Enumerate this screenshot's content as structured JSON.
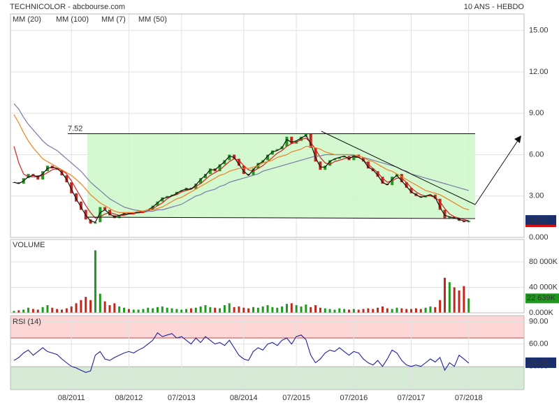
{
  "chart_data": [
    {
      "type": "stock",
      "title": "TECHNICOLOR - abcbourse.com",
      "subtitle": "10 ANS - HEBDO",
      "categories": [
        null,
        null,
        null,
        null,
        null,
        null,
        null,
        null,
        null,
        null,
        null,
        null,
        "08/2011",
        null,
        null,
        null,
        null,
        null,
        null,
        null,
        null,
        null,
        null,
        null,
        "08/2012",
        null,
        null,
        null,
        null,
        null,
        null,
        null,
        null,
        null,
        null,
        "07/2013",
        null,
        null,
        null,
        null,
        null,
        null,
        null,
        null,
        null,
        null,
        null,
        null,
        "08/2014",
        null,
        null,
        null,
        null,
        null,
        null,
        null,
        null,
        null,
        null,
        "07/2015",
        null,
        null,
        null,
        null,
        null,
        null,
        null,
        null,
        null,
        null,
        null,
        "07/2016",
        null,
        null,
        null,
        null,
        null,
        null,
        null,
        null,
        null,
        null,
        null,
        "07/2017",
        null,
        null,
        null,
        null,
        null,
        null,
        null,
        null,
        null,
        null,
        null,
        "07/2018"
      ],
      "values": [
        4.0,
        3.9,
        4.3,
        4.6,
        4.5,
        4.2,
        4.8,
        5.2,
        5.0,
        4.9,
        4.5,
        4.0,
        3.2,
        2.6,
        2.0,
        1.3,
        1.0,
        1.1,
        2.2,
        2.0,
        1.6,
        1.4,
        1.6,
        1.8,
        1.7,
        1.8,
        1.8,
        1.9,
        2.0,
        2.3,
        2.6,
        2.9,
        3.0,
        3.1,
        3.3,
        3.4,
        3.6,
        3.5,
        3.9,
        4.3,
        4.6,
        5.0,
        4.8,
        5.3,
        5.6,
        6.0,
        5.7,
        5.2,
        4.6,
        4.5,
        5.0,
        5.4,
        5.6,
        6.0,
        6.3,
        6.4,
        6.6,
        7.3,
        6.8,
        7.0,
        7.3,
        7.5,
        6.5,
        5.5,
        4.9,
        5.2,
        5.6,
        5.7,
        5.8,
        5.9,
        5.6,
        6.0,
        5.8,
        5.5,
        5.0,
        4.8,
        4.4,
        3.9,
        3.8,
        4.4,
        4.6,
        4.0,
        3.6,
        3.2,
        3.0,
        2.9,
        3.0,
        3.1,
        2.8,
        2.0,
        1.4,
        1.5,
        1.4,
        1.2,
        1.1,
        1.21
      ],
      "value_labels": [
        null,
        null,
        null,
        null,
        null,
        null,
        null,
        null,
        null,
        null,
        null,
        null,
        null,
        null,
        null,
        null,
        null,
        null,
        null,
        null,
        null,
        null,
        null,
        null,
        null,
        null,
        null,
        null,
        null,
        null,
        null,
        null,
        null,
        null,
        null,
        null,
        null,
        null,
        null,
        null,
        null,
        null,
        null,
        null,
        null,
        null,
        null,
        null,
        null,
        null,
        null,
        null,
        null,
        null,
        null,
        null,
        null,
        null,
        null,
        null,
        null,
        null,
        null,
        null,
        null,
        null,
        null,
        null,
        null,
        null,
        null,
        null,
        null,
        null,
        null,
        null,
        null,
        null,
        null,
        null,
        null,
        null,
        null,
        null,
        null,
        null,
        null,
        null,
        null,
        null,
        null,
        null,
        null,
        null,
        null,
        "1.210"
      ],
      "up_color": "#1f9a1f",
      "down_color": "#c0281e",
      "series": [
        {
          "name": "MM (20)",
          "color": "#d62020",
          "values": [
            6.6,
            5.4,
            4.6,
            4.4,
            4.4,
            4.4,
            4.5,
            4.7,
            4.9,
            5.0,
            4.9,
            4.6,
            4.1,
            3.5,
            2.9,
            2.3,
            1.8,
            1.4,
            1.5,
            1.7,
            1.8,
            1.7,
            1.6,
            1.6,
            1.7,
            1.7,
            1.8,
            1.8,
            1.9,
            2.1,
            2.3,
            2.5,
            2.8,
            3.0,
            3.1,
            3.3,
            3.4,
            3.5,
            3.7,
            3.9,
            4.2,
            4.5,
            4.7,
            4.9,
            5.2,
            5.5,
            5.7,
            5.6,
            5.2,
            4.9,
            4.8,
            5.0,
            5.2,
            5.5,
            5.8,
            6.1,
            6.3,
            6.6,
            6.8,
            6.9,
            7.1,
            7.2,
            6.9,
            6.4,
            5.8,
            5.4,
            5.3,
            5.5,
            5.6,
            5.7,
            5.8,
            5.8,
            5.8,
            5.6,
            5.3,
            5.0,
            4.7,
            4.3,
            4.0,
            4.1,
            4.3,
            4.3,
            4.0,
            3.6,
            3.3,
            3.1,
            3.0,
            3.0,
            2.9,
            2.6,
            2.1,
            1.7,
            1.5,
            1.4,
            1.3,
            1.2
          ]
        },
        {
          "name": "MM (100)",
          "color": "#7b7ba6",
          "values": [
            9.7,
            9.3,
            8.7,
            8.2,
            7.8,
            7.4,
            7.0,
            6.7,
            6.5,
            6.3,
            6.0,
            5.7,
            5.4,
            5.1,
            4.8,
            4.4,
            4.0,
            3.7,
            3.4,
            3.1,
            2.8,
            2.6,
            2.4,
            2.2,
            2.1,
            2.0,
            1.95,
            1.9,
            1.9,
            1.9,
            2.0,
            2.0,
            2.1,
            2.2,
            2.3,
            2.4,
            2.6,
            2.8,
            3.0,
            3.1,
            3.3,
            3.4,
            3.5,
            3.7,
            3.8,
            4.0,
            4.1,
            4.2,
            4.3,
            4.4,
            4.5,
            4.6,
            4.8,
            4.9,
            5.0,
            5.1,
            5.2,
            5.3,
            5.4,
            5.5,
            5.6,
            5.7,
            5.8,
            5.9,
            5.9,
            6.0,
            6.0,
            6.0,
            6.0,
            6.0,
            6.0,
            5.9,
            5.9,
            5.8,
            5.7,
            5.6,
            5.5,
            5.4,
            5.3,
            5.2,
            5.1,
            4.9,
            4.8,
            4.6,
            4.5,
            4.4,
            4.3,
            4.2,
            4.1,
            4.0,
            3.9,
            3.8,
            3.7,
            3.6,
            3.5,
            3.4
          ]
        },
        {
          "name": "MM (7)",
          "color": "#111111",
          "values": [
            4.0,
            3.9,
            4.1,
            4.4,
            4.5,
            4.4,
            4.6,
            5.0,
            5.1,
            5.0,
            4.7,
            4.2,
            3.5,
            2.8,
            2.2,
            1.6,
            1.2,
            1.1,
            1.8,
            2.0,
            1.7,
            1.5,
            1.6,
            1.7,
            1.7,
            1.8,
            1.8,
            1.9,
            2.0,
            2.2,
            2.5,
            2.8,
            2.9,
            3.0,
            3.2,
            3.4,
            3.5,
            3.5,
            3.8,
            4.2,
            4.5,
            4.9,
            4.9,
            5.2,
            5.5,
            5.9,
            5.8,
            5.3,
            4.8,
            4.5,
            4.9,
            5.3,
            5.5,
            5.9,
            6.2,
            6.3,
            6.5,
            7.1,
            6.9,
            7.0,
            7.2,
            7.4,
            6.8,
            5.8,
            5.1,
            5.1,
            5.5,
            5.7,
            5.8,
            5.9,
            5.7,
            5.9,
            5.8,
            5.6,
            5.1,
            4.9,
            4.5,
            4.0,
            3.8,
            4.2,
            4.5,
            4.1,
            3.7,
            3.3,
            3.1,
            2.9,
            3.0,
            3.1,
            2.9,
            2.2,
            1.6,
            1.5,
            1.4,
            1.3,
            1.2,
            1.2
          ]
        },
        {
          "name": "MM (50)",
          "color": "#f08020",
          "values": [
            8.9,
            8.3,
            7.6,
            7.0,
            6.5,
            6.1,
            5.7,
            5.5,
            5.3,
            5.1,
            4.9,
            4.7,
            4.5,
            4.2,
            3.9,
            3.5,
            3.1,
            2.8,
            2.5,
            2.3,
            2.1,
            1.9,
            1.8,
            1.8,
            1.8,
            1.8,
            1.9,
            1.9,
            2.0,
            2.0,
            2.1,
            2.2,
            2.4,
            2.6,
            2.8,
            2.9,
            3.1,
            3.3,
            3.5,
            3.7,
            3.9,
            4.1,
            4.3,
            4.5,
            4.6,
            4.8,
            4.9,
            5.0,
            5.0,
            5.0,
            5.1,
            5.2,
            5.4,
            5.5,
            5.6,
            5.8,
            5.9,
            6.0,
            6.2,
            6.3,
            6.4,
            6.6,
            6.6,
            6.5,
            6.4,
            6.2,
            6.1,
            6.0,
            6.0,
            6.0,
            6.0,
            6.0,
            5.9,
            5.8,
            5.6,
            5.5,
            5.3,
            5.1,
            4.9,
            4.8,
            4.6,
            4.4,
            4.2,
            4.0,
            3.8,
            3.6,
            3.4,
            3.3,
            3.2,
            3.1,
            2.9,
            2.7,
            2.5,
            2.3,
            2.1,
            2.0
          ]
        }
      ],
      "resistance": 7.52,
      "ylim": [
        0,
        16.2
      ],
      "yticks": [
        {
          "value": 0,
          "label": "0.000"
        },
        {
          "value": 3,
          "label": "3.00"
        },
        {
          "value": 6,
          "label": "6.00"
        },
        {
          "value": 9,
          "label": "9.00"
        },
        {
          "value": 12,
          "label": "12.00"
        },
        {
          "value": 15,
          "label": "15.00"
        }
      ],
      "grid": true
    },
    {
      "type": "bar",
      "title": "VOLUME",
      "values": [
        3000,
        4000,
        5000,
        8000,
        6000,
        5000,
        9000,
        12000,
        8000,
        6000,
        5000,
        7000,
        10000,
        15000,
        20000,
        25000,
        20000,
        98000,
        30000,
        18000,
        12000,
        15000,
        10000,
        8000,
        6000,
        5000,
        5000,
        6000,
        8000,
        7000,
        9000,
        10000,
        8000,
        7000,
        6000,
        5000,
        6000,
        7000,
        8000,
        10000,
        12000,
        9000,
        8000,
        7000,
        12000,
        15000,
        9000,
        10000,
        8000,
        7000,
        9000,
        8000,
        10000,
        12000,
        9000,
        8000,
        10000,
        14000,
        15000,
        12000,
        10000,
        13000,
        9000,
        12000,
        8000,
        7000,
        6000,
        5000,
        7000,
        6000,
        5000,
        6000,
        5000,
        6000,
        7000,
        6000,
        8000,
        10000,
        7000,
        6000,
        8000,
        7000,
        6000,
        6000,
        7000,
        6000,
        8000,
        10000,
        9000,
        20000,
        55000,
        48000,
        40000,
        35000,
        42000,
        22639
      ],
      "value_labels": [
        null,
        null,
        null,
        null,
        null,
        null,
        null,
        null,
        null,
        null,
        null,
        null,
        null,
        null,
        null,
        null,
        null,
        null,
        null,
        null,
        null,
        null,
        null,
        null,
        null,
        null,
        null,
        null,
        null,
        null,
        null,
        null,
        null,
        null,
        null,
        null,
        null,
        null,
        null,
        null,
        null,
        null,
        null,
        null,
        null,
        null,
        null,
        null,
        null,
        null,
        null,
        null,
        null,
        null,
        null,
        null,
        null,
        null,
        null,
        null,
        null,
        null,
        null,
        null,
        null,
        null,
        null,
        null,
        null,
        null,
        null,
        null,
        null,
        null,
        null,
        null,
        null,
        null,
        null,
        null,
        null,
        null,
        null,
        null,
        null,
        null,
        null,
        null,
        null,
        null,
        null,
        null,
        null,
        null,
        null,
        "22 639K"
      ],
      "ylim": [
        0,
        115000
      ],
      "yticks": [
        {
          "value": 0,
          "label": "0.000K"
        },
        {
          "value": 40000,
          "label": "40 000K"
        },
        {
          "value": 80000,
          "label": "80 000K"
        }
      ],
      "grid": true
    },
    {
      "type": "line",
      "title": "RSI (14)",
      "color": "#2020a0",
      "values": [
        38,
        42,
        48,
        52,
        45,
        50,
        55,
        50,
        48,
        46,
        40,
        35,
        30,
        28,
        25,
        22,
        24,
        45,
        50,
        40,
        38,
        42,
        45,
        48,
        50,
        48,
        52,
        55,
        60,
        65,
        75,
        70,
        72,
        74,
        68,
        70,
        65,
        60,
        68,
        62,
        70,
        65,
        60,
        62,
        58,
        65,
        55,
        45,
        40,
        38,
        50,
        55,
        52,
        60,
        62,
        58,
        65,
        68,
        60,
        70,
        72,
        66,
        45,
        35,
        40,
        48,
        52,
        50,
        55,
        50,
        45,
        50,
        48,
        40,
        35,
        32,
        38,
        30,
        40,
        52,
        48,
        38,
        32,
        30,
        32,
        30,
        35,
        40,
        36,
        42,
        25,
        35,
        30,
        45,
        40,
        34.55
      ],
      "ylim": [
        -1,
        98
      ],
      "yticks": [
        {
          "value": 30,
          "label": "30.00"
        },
        {
          "value": 60,
          "label": "60.00"
        },
        {
          "value": 90,
          "label": "90.00"
        }
      ],
      "grid": true
    }
  ]
}
